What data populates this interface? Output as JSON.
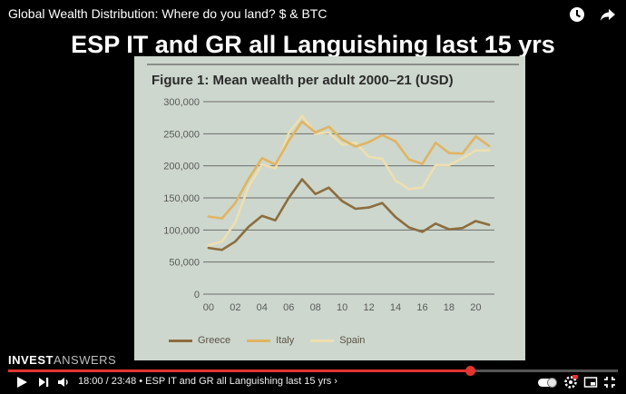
{
  "video": {
    "title": "Global Wealth Distribution: Where do you land? $ & BTC"
  },
  "headline": "ESP IT and GR all Languishing last 15 yrs",
  "player": {
    "brand_bold": "INVEST",
    "brand_light": "ANSWERS",
    "time_display": "18:00 / 23:48 • ESP IT and GR all Languishing last 15 yrs ›",
    "progress_fraction": 0.757,
    "accent_color": "#e3342f",
    "icons": [
      "play-icon",
      "next-icon",
      "volume-icon",
      "autoplay-toggle",
      "settings-icon",
      "miniplayer-icon",
      "fullscreen-exit-icon",
      "clock-icon",
      "share-icon"
    ]
  },
  "chart_data": {
    "type": "line",
    "title": "Figure 1: Mean wealth per adult 2000–21 (USD)",
    "xlabel": "",
    "ylabel": "",
    "x": [
      2000,
      2001,
      2002,
      2003,
      2004,
      2005,
      2006,
      2007,
      2008,
      2009,
      2010,
      2011,
      2012,
      2013,
      2014,
      2015,
      2016,
      2017,
      2018,
      2019,
      2020,
      2021
    ],
    "x_tick_labels": [
      "00",
      "02",
      "04",
      "06",
      "08",
      "10",
      "12",
      "14",
      "16",
      "18",
      "20"
    ],
    "x_tick_values": [
      2000,
      2002,
      2004,
      2006,
      2008,
      2010,
      2012,
      2014,
      2016,
      2018,
      2020
    ],
    "xlim": [
      1999.6,
      2021.4
    ],
    "ylim": [
      0,
      300000
    ],
    "y_ticks": [
      0,
      50000,
      100000,
      150000,
      200000,
      250000,
      300000
    ],
    "y_tick_labels": [
      "0",
      "50,000",
      "100,000",
      "150,000",
      "200,000",
      "250,000",
      "300,000"
    ],
    "grid": true,
    "legend_position": "bottom",
    "series": [
      {
        "name": "Greece",
        "color": "#8c6d3f",
        "values": [
          72000,
          69000,
          82000,
          105000,
          122000,
          115000,
          150000,
          179000,
          156000,
          166000,
          145000,
          133000,
          135000,
          142000,
          120000,
          104000,
          97000,
          110000,
          101000,
          103000,
          114000,
          108000
        ]
      },
      {
        "name": "Italy",
        "color": "#e0b462",
        "values": [
          121000,
          118000,
          142000,
          180000,
          212000,
          202000,
          239000,
          269000,
          252000,
          261000,
          241000,
          230000,
          237000,
          248000,
          238000,
          210000,
          203000,
          236000,
          220000,
          219000,
          246000,
          231000
        ]
      },
      {
        "name": "Spain",
        "color": "#eedfb0",
        "values": [
          76000,
          82000,
          112000,
          168000,
          202000,
          196000,
          251000,
          278000,
          250000,
          252000,
          233000,
          236000,
          214000,
          211000,
          177000,
          164000,
          166000,
          201000,
          201000,
          212000,
          224000,
          224000
        ]
      }
    ]
  }
}
